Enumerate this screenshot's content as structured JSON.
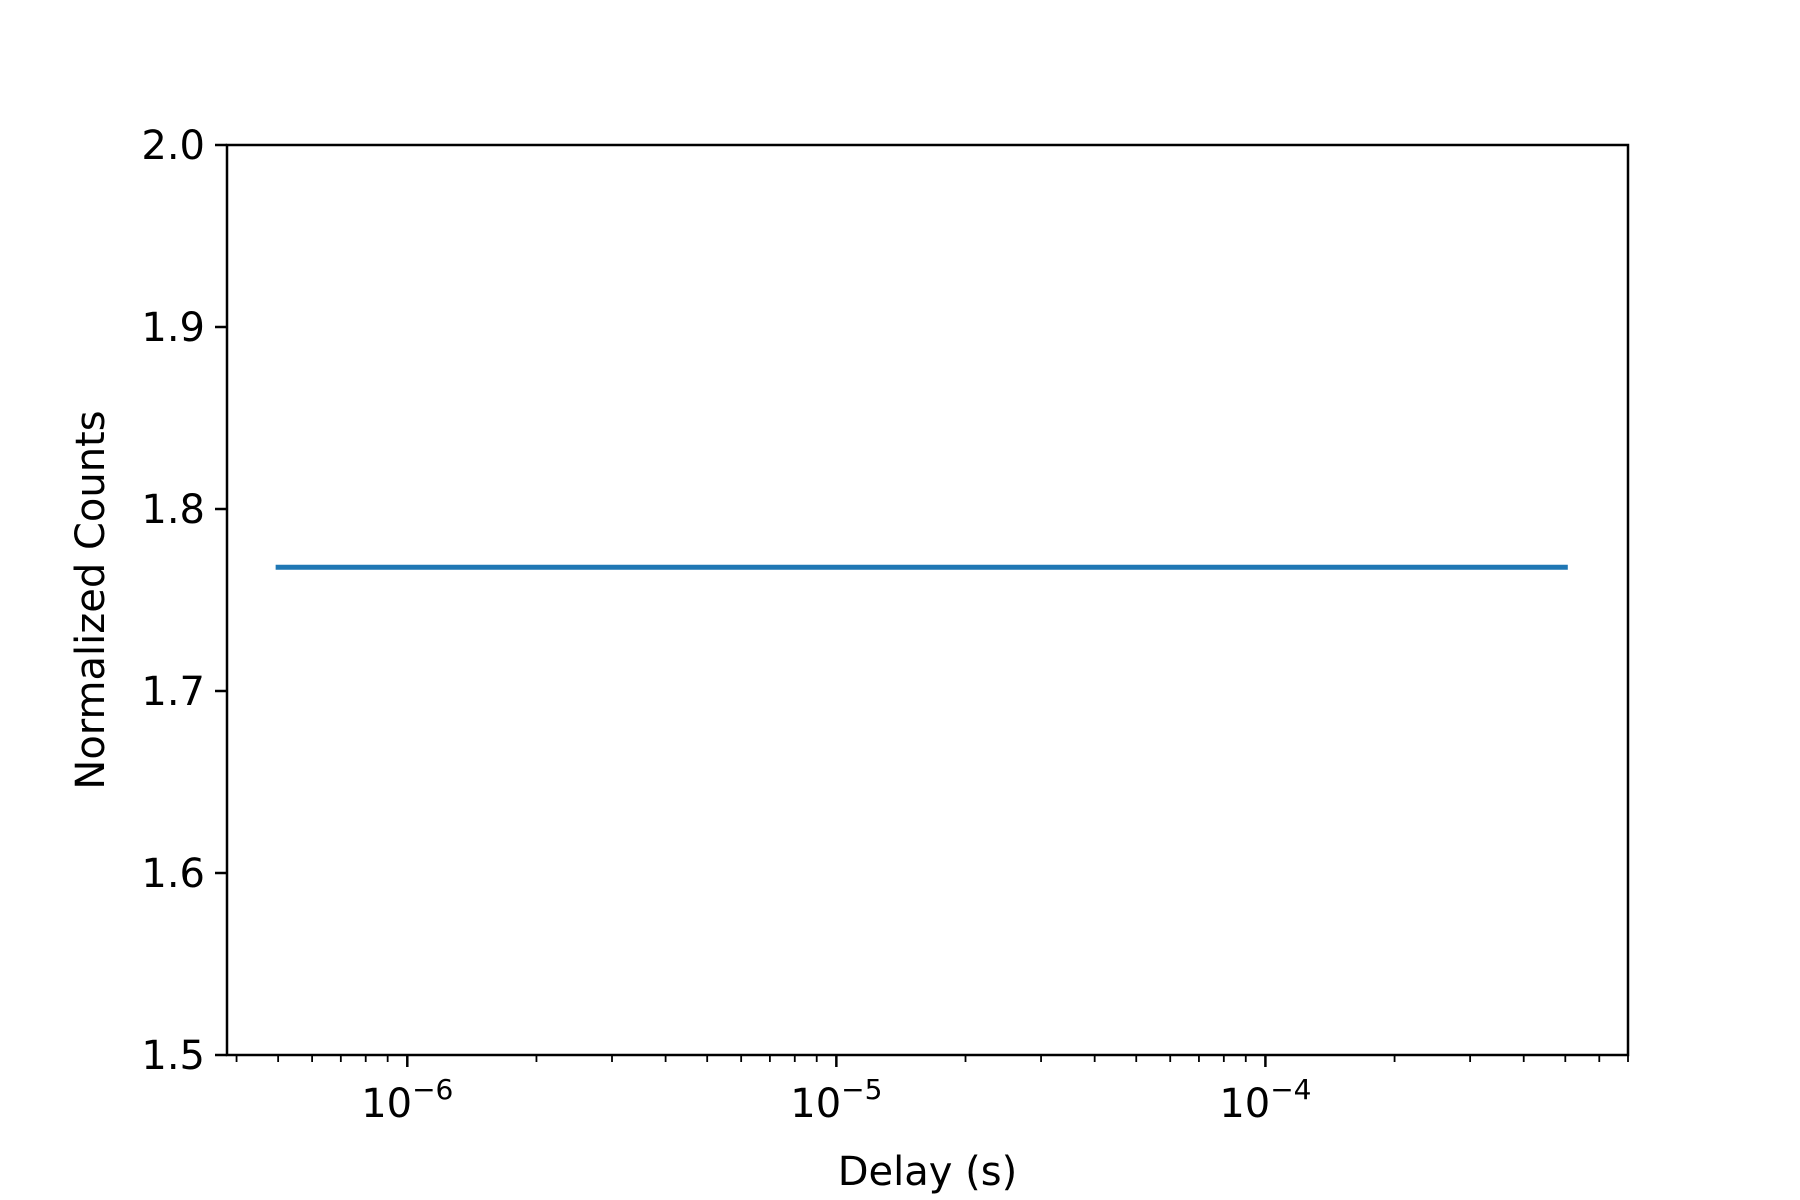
{
  "chart_data": {
    "type": "line",
    "title": "",
    "xlabel": "Delay (s)",
    "ylabel": "Normalized Counts",
    "xscale": "log",
    "xlim": [
      3.8e-07,
      0.0007
    ],
    "ylim": [
      1.5,
      2.0
    ],
    "grid": false,
    "legend": "none",
    "y_ticks": [
      "1.5",
      "1.6",
      "1.7",
      "1.8",
      "1.9",
      "2.0"
    ],
    "x_ticks": [
      {
        "base": "10",
        "exp": "−6",
        "value": 1e-06
      },
      {
        "base": "10",
        "exp": "−5",
        "value": 1e-05
      },
      {
        "base": "10",
        "exp": "−4",
        "value": 0.0001
      }
    ],
    "series": [
      {
        "color": "#1f77b4",
        "x": [
          5e-07,
          1e-06,
          1e-05,
          0.0001,
          0.0005
        ],
        "y": [
          1.768,
          1.768,
          1.768,
          1.768,
          1.768
        ]
      }
    ]
  }
}
